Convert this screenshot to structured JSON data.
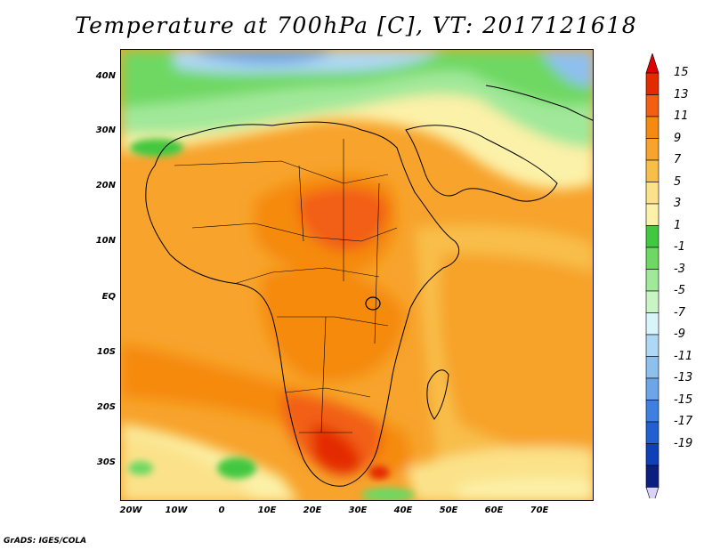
{
  "title": "Temperature at 700hPa [C], VT: 2017121618",
  "credit": "GrADS: IGES/COLA",
  "map": {
    "projection": "lat-lon",
    "lon_range": [
      -25,
      80
    ],
    "lat_range": [
      -37,
      45
    ],
    "variable": "700hPa temperature",
    "units": "C",
    "valid_time": "2017121618"
  },
  "axes": {
    "lat_labels": [
      "40N",
      "30N",
      "20N",
      "10N",
      "EQ",
      "10S",
      "20S",
      "30S"
    ],
    "lon_labels": [
      "20W",
      "10W",
      "0",
      "10E",
      "20E",
      "30E",
      "40E",
      "50E",
      "60E",
      "70E"
    ]
  },
  "colorbar": {
    "labels": [
      "15",
      "13",
      "11",
      "9",
      "7",
      "5",
      "3",
      "1",
      "-1",
      "-3",
      "-5",
      "-7",
      "-9",
      "-11",
      "-13",
      "-15",
      "-17",
      "-19"
    ],
    "colors": [
      "#e32b00",
      "#f25e12",
      "#f58a10",
      "#f7a32c",
      "#f8be4a",
      "#fbe28a",
      "#fcf1a8",
      "#42c840",
      "#6ed862",
      "#a1e89a",
      "#c9f4c4",
      "#d8f6fa",
      "#aed8f4",
      "#8ec0ee",
      "#6ca5e8",
      "#3e80e0",
      "#2060d0",
      "#1040b8",
      "#0b1f80"
    ],
    "top_arrow_color": "#e00000",
    "bottom_arrow_color": "#d9d3f5"
  }
}
